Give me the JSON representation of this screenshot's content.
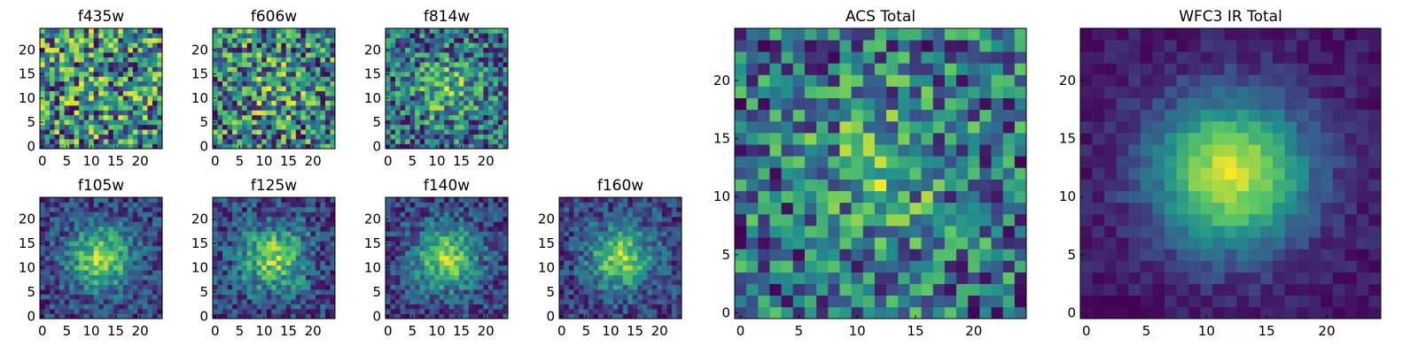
{
  "figure": {
    "description_colormap": "viridis",
    "colormap_stops": [
      "#440154",
      "#3b528b",
      "#21918c",
      "#5ec962",
      "#fde725"
    ]
  },
  "chart_data": [
    {
      "type": "heatmap",
      "title": "f435w",
      "grid_size": 25,
      "x_ticks": [
        "0",
        "5",
        "10",
        "15",
        "20"
      ],
      "y_ticks": [
        "0",
        "5",
        "10",
        "15",
        "20"
      ],
      "center": [
        12,
        12
      ],
      "signal": 0.05,
      "noise": 0.95,
      "seed": 11
    },
    {
      "type": "heatmap",
      "title": "f606w",
      "grid_size": 25,
      "x_ticks": [
        "0",
        "5",
        "10",
        "15",
        "20"
      ],
      "y_ticks": [
        "0",
        "5",
        "10",
        "15",
        "20"
      ],
      "center": [
        12,
        12
      ],
      "signal": 0.15,
      "noise": 0.85,
      "seed": 23
    },
    {
      "type": "heatmap",
      "title": "f814w",
      "grid_size": 25,
      "x_ticks": [
        "0",
        "5",
        "10",
        "15",
        "20"
      ],
      "y_ticks": [
        "0",
        "5",
        "10",
        "15",
        "20"
      ],
      "center": [
        12,
        12
      ],
      "signal": 0.3,
      "noise": 0.7,
      "seed": 37
    },
    {
      "type": "heatmap",
      "title": "f105w",
      "grid_size": 25,
      "x_ticks": [
        "0",
        "5",
        "10",
        "15",
        "20"
      ],
      "y_ticks": [
        "0",
        "5",
        "10",
        "15",
        "20"
      ],
      "center": [
        12,
        12
      ],
      "signal": 0.6,
      "noise": 0.4,
      "seed": 41
    },
    {
      "type": "heatmap",
      "title": "f125w",
      "grid_size": 25,
      "x_ticks": [
        "0",
        "5",
        "10",
        "15",
        "20"
      ],
      "y_ticks": [
        "0",
        "5",
        "10",
        "15",
        "20"
      ],
      "center": [
        12,
        12
      ],
      "signal": 0.55,
      "noise": 0.45,
      "seed": 53
    },
    {
      "type": "heatmap",
      "title": "f140w",
      "grid_size": 25,
      "x_ticks": [
        "0",
        "5",
        "10",
        "15",
        "20"
      ],
      "y_ticks": [
        "0",
        "5",
        "10",
        "15",
        "20"
      ],
      "center": [
        12,
        12
      ],
      "signal": 0.6,
      "noise": 0.4,
      "seed": 67
    },
    {
      "type": "heatmap",
      "title": "f160w",
      "grid_size": 25,
      "x_ticks": [
        "0",
        "5",
        "10",
        "15",
        "20"
      ],
      "y_ticks": [
        "0",
        "5",
        "10",
        "15",
        "20"
      ],
      "center": [
        12,
        12
      ],
      "signal": 0.6,
      "noise": 0.4,
      "seed": 79
    },
    {
      "type": "heatmap",
      "title": "ACS Total",
      "grid_size": 25,
      "x_ticks": [
        "0",
        "5",
        "10",
        "15",
        "20"
      ],
      "y_ticks": [
        "0",
        "5",
        "10",
        "15",
        "20"
      ],
      "center": [
        12,
        12
      ],
      "signal": 0.25,
      "noise": 0.75,
      "seed": 89
    },
    {
      "type": "heatmap",
      "title": "WFC3 IR Total",
      "grid_size": 25,
      "x_ticks": [
        "0",
        "5",
        "10",
        "15",
        "20"
      ],
      "y_ticks": [
        "0",
        "5",
        "10",
        "15",
        "20"
      ],
      "center": [
        12,
        12
      ],
      "signal": 0.85,
      "noise": 0.15,
      "seed": 97
    }
  ]
}
